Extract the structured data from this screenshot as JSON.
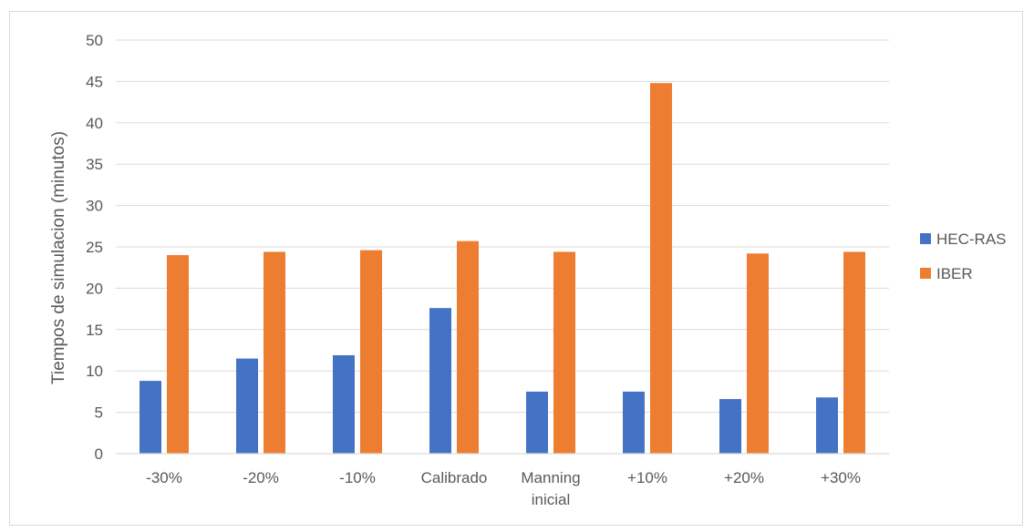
{
  "chart_data": {
    "type": "bar",
    "title": "",
    "xlabel": "",
    "ylabel": "Tiempos de simulacion (minutos)",
    "ylim": [
      0,
      50
    ],
    "yticks": [
      0,
      5,
      10,
      15,
      20,
      25,
      30,
      35,
      40,
      45,
      50
    ],
    "grid": true,
    "legend_position": "right",
    "categories": [
      [
        "-30%"
      ],
      [
        "-20%"
      ],
      [
        "-10%"
      ],
      [
        "Calibrado"
      ],
      [
        "Manning",
        "inicial"
      ],
      [
        "+10%"
      ],
      [
        "+20%"
      ],
      [
        "+30%"
      ]
    ],
    "series": [
      {
        "name": "HEC-RAS",
        "color": "#4472C4",
        "values": [
          8.8,
          11.5,
          11.9,
          17.6,
          7.5,
          7.5,
          6.6,
          6.8
        ]
      },
      {
        "name": "IBER",
        "color": "#ED7D31",
        "values": [
          24.0,
          24.4,
          24.6,
          25.7,
          24.4,
          44.8,
          24.2,
          24.4
        ]
      }
    ]
  }
}
